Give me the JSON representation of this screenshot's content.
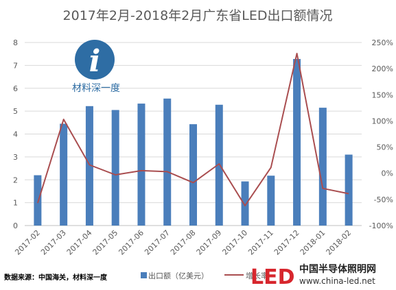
{
  "chart_data": {
    "type": "bar+line",
    "title": "2017年2月-2018年2月广东省LED出口额情况",
    "categories": [
      "2017-02",
      "2017-03",
      "2017-04",
      "2017-05",
      "2017-06",
      "2017-07",
      "2017-08",
      "2017-09",
      "2017-10",
      "2017-11",
      "2017-12",
      "2018-01",
      "2018-02"
    ],
    "series": [
      {
        "name": "出口额（亿美元）",
        "type": "bar",
        "axis": "left",
        "color": "#4a7ebb",
        "values": [
          2.2,
          4.45,
          5.22,
          5.05,
          5.33,
          5.55,
          4.43,
          5.28,
          1.93,
          2.18,
          7.28,
          5.15,
          3.1
        ]
      },
      {
        "name": "增长率",
        "type": "line",
        "axis": "right",
        "color": "#a94d4f",
        "values": [
          -0.57,
          1.03,
          0.16,
          -0.03,
          0.05,
          0.03,
          -0.18,
          0.18,
          -0.62,
          0.11,
          2.29,
          -0.29,
          -0.39
        ]
      }
    ],
    "y_left": {
      "min": 0,
      "max": 8,
      "step": 1,
      "ticks": [
        "0",
        "1",
        "2",
        "3",
        "4",
        "5",
        "6",
        "7",
        "8"
      ]
    },
    "y_right": {
      "min": -1,
      "max": 2.5,
      "step": 0.5,
      "ticks": [
        "-100%",
        "-50%",
        "0%",
        "50%",
        "100%",
        "150%",
        "200%",
        "250%"
      ]
    },
    "grid": true,
    "legend_position": "bottom"
  },
  "legend": {
    "bar_label": "出口额（亿美元）",
    "line_label": "增长率"
  },
  "source_note": "数据来源：中国海关，材料深一度",
  "watermark": {
    "cailiao_logo_letter": "i",
    "cailiao_text": "材料深一度",
    "led_logo_text": "LED",
    "brand_name": "中国半导体照明网",
    "brand_url": "www.china-led.net"
  },
  "colors": {
    "bar": "#4a7ebb",
    "line": "#a94d4f",
    "grid": "#d9d9d9",
    "led_red": "#d7262d"
  }
}
